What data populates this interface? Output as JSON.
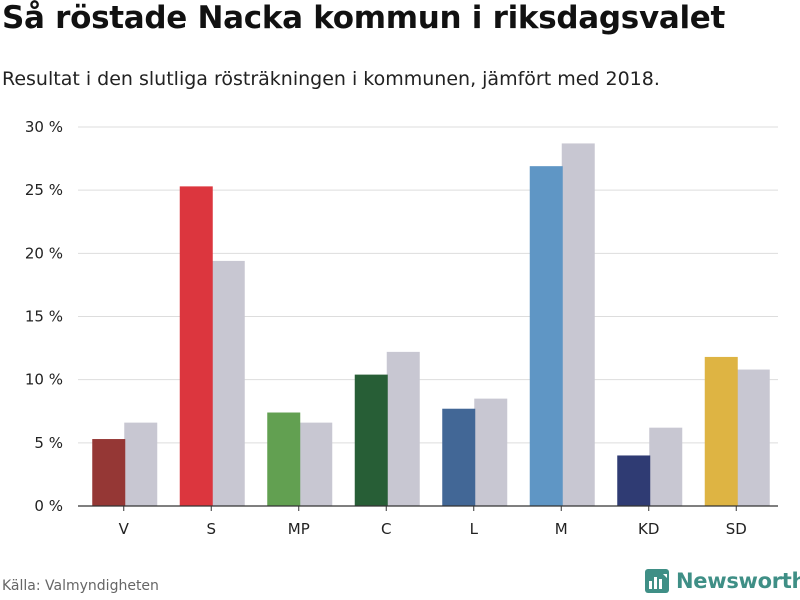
{
  "header": {
    "title": "Så röstade Nacka kommun i riksdagsvalet",
    "subtitle": "Resultat i den slutliga rösträkningen i kommunen, jämfört med 2018."
  },
  "footer": {
    "source": "Källa: Valmyndigheten",
    "brand": "Newsworthy",
    "brand_color": "#3f8f86"
  },
  "chart_data": {
    "type": "bar",
    "categories": [
      "V",
      "S",
      "MP",
      "C",
      "L",
      "M",
      "KD",
      "SD"
    ],
    "series": [
      {
        "values": [
          5.3,
          25.3,
          7.4,
          10.4,
          7.7,
          26.9,
          4.0,
          11.8
        ],
        "colors": [
          "#953735",
          "#dc363e",
          "#62a051",
          "#275e36",
          "#426796",
          "#5f96c5",
          "#2f3b73",
          "#deb443"
        ]
      },
      {
        "values": [
          6.6,
          19.4,
          6.6,
          12.2,
          8.5,
          28.7,
          6.2,
          10.8
        ],
        "color": "#c8c7d2"
      }
    ],
    "ylim": [
      0,
      30
    ],
    "yticks": [
      0,
      5,
      10,
      15,
      20,
      25,
      30
    ],
    "ytick_labels": [
      "0 %",
      "5 %",
      "10 %",
      "15 %",
      "20 %",
      "25 %",
      "30 %"
    ],
    "grid": true,
    "legend": "none"
  }
}
